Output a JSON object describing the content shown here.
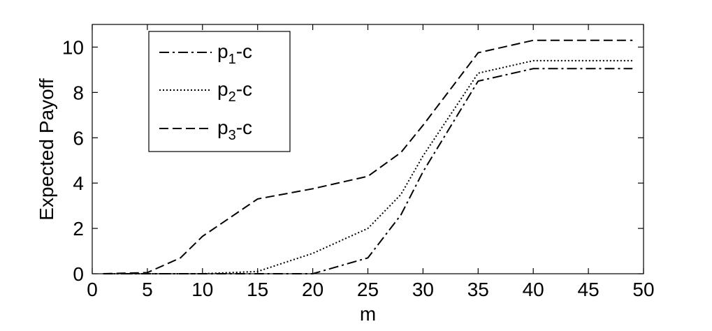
{
  "chart_data": {
    "type": "line",
    "title": "",
    "xlabel": "m",
    "ylabel": "Expected Payoff",
    "xlim": [
      0,
      50
    ],
    "ylim": [
      0,
      11
    ],
    "xticks": [
      0,
      5,
      10,
      15,
      20,
      25,
      30,
      35,
      40,
      45,
      50
    ],
    "yticks": [
      0,
      2,
      4,
      6,
      8,
      10
    ],
    "grid": false,
    "legend_position": "top-left",
    "series": [
      {
        "name": "p1-c",
        "label_main": "p",
        "label_sub": "1",
        "label_tail": "-c",
        "line_style": "dash-dot",
        "color": "#000000",
        "x": [
          1,
          5,
          10,
          15,
          20,
          25,
          28,
          30,
          35,
          40,
          49
        ],
        "y": [
          0,
          0,
          0,
          0,
          0,
          0.7,
          2.6,
          4.5,
          8.5,
          9.05,
          9.05
        ]
      },
      {
        "name": "p2-c",
        "label_main": "p",
        "label_sub": "2",
        "label_tail": "-c",
        "line_style": "dotted",
        "color": "#000000",
        "x": [
          1,
          5,
          10,
          15,
          20,
          25,
          28,
          30,
          35,
          40,
          49
        ],
        "y": [
          0,
          0,
          0,
          0.1,
          0.9,
          2.0,
          3.5,
          5.2,
          8.85,
          9.4,
          9.4
        ]
      },
      {
        "name": "p3-c",
        "label_main": "p",
        "label_sub": "3",
        "label_tail": "-c",
        "line_style": "dashed",
        "color": "#000000",
        "x": [
          1,
          5,
          8,
          10,
          15,
          20,
          25,
          28,
          30,
          35,
          40,
          49
        ],
        "y": [
          0,
          0.05,
          0.7,
          1.65,
          3.3,
          3.75,
          4.3,
          5.35,
          6.55,
          9.75,
          10.3,
          10.3
        ]
      }
    ]
  }
}
